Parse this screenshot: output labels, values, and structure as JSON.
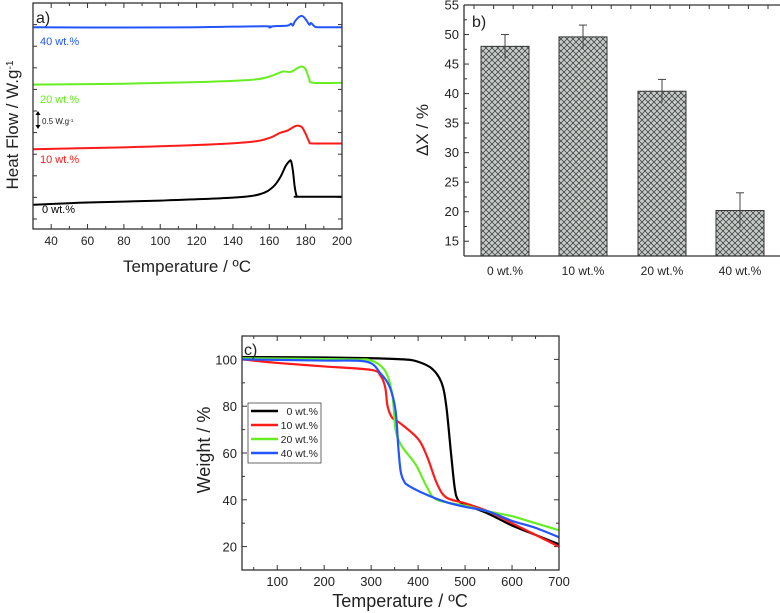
{
  "chart_data": [
    {
      "panel": "a)",
      "type": "line",
      "xlabel": "Temperature / ºC",
      "ylabel": "Heat Flow / W.g",
      "ylabel_sup": "-1",
      "xlim": [
        30,
        200
      ],
      "ylim": [
        0,
        7
      ],
      "xticks": [
        40,
        60,
        80,
        100,
        120,
        140,
        160,
        180,
        200
      ],
      "scale_bar_label": "0.5 W.g",
      "scale_bar_sup": "-1",
      "scale_bar_value": 0.5,
      "series": [
        {
          "name": "0 wt.%",
          "color": "#000000",
          "x": [
            30,
            60,
            100,
            140,
            155,
            162,
            166,
            169,
            171,
            172,
            173,
            174,
            175,
            176,
            200
          ],
          "y": [
            0.75,
            0.82,
            0.88,
            0.97,
            1.08,
            1.3,
            1.6,
            1.95,
            2.1,
            2.1,
            1.8,
            1.3,
            1.03,
            1.0,
            1.0
          ]
        },
        {
          "name": "10 wt.%",
          "color": "#ff1a1a",
          "x": [
            30,
            80,
            120,
            150,
            160,
            166,
            170,
            174,
            176,
            178,
            180,
            182,
            184,
            200
          ],
          "y": [
            2.47,
            2.53,
            2.6,
            2.7,
            2.82,
            2.98,
            3.05,
            3.18,
            3.2,
            3.15,
            2.95,
            2.7,
            2.65,
            2.65
          ]
        },
        {
          "name": "20 wt.%",
          "color": "#66ee22",
          "x": [
            30,
            80,
            120,
            150,
            160,
            166,
            168,
            172,
            176,
            178,
            180,
            182,
            184,
            200
          ],
          "y": [
            4.47,
            4.5,
            4.55,
            4.62,
            4.72,
            4.85,
            4.88,
            4.87,
            5.0,
            5.03,
            4.95,
            4.65,
            4.53,
            4.53
          ]
        },
        {
          "name": "40 wt.%",
          "color": "#2255ff",
          "x": [
            30,
            80,
            120,
            158,
            160,
            162,
            170,
            172,
            173,
            174,
            176,
            178,
            180,
            182,
            183,
            185,
            187,
            200
          ],
          "y": [
            6.25,
            6.24,
            6.25,
            6.28,
            6.24,
            6.28,
            6.3,
            6.36,
            6.3,
            6.42,
            6.55,
            6.6,
            6.5,
            6.33,
            6.38,
            6.27,
            6.25,
            6.25
          ]
        }
      ]
    },
    {
      "panel": "b)",
      "type": "bar",
      "categories": [
        "0 wt.%",
        "10 wt.%",
        "20 wt.%",
        "40 wt.%"
      ],
      "values": [
        48.0,
        49.6,
        40.4,
        20.2
      ],
      "errors": [
        2.0,
        2.0,
        2.0,
        3.0
      ],
      "xlabel": "",
      "ylabel": "ΔX / %",
      "ylim": [
        12.5,
        55
      ],
      "yticks": [
        15,
        20,
        25,
        30,
        35,
        40,
        45,
        50,
        55
      ],
      "bar_color": "#c5ccc8"
    },
    {
      "panel": "c)",
      "type": "line",
      "xlabel": "Temperature / ºC",
      "ylabel": "Weight / %",
      "xlim": [
        25,
        700
      ],
      "ylim": [
        10,
        110
      ],
      "xticks": [
        100,
        200,
        300,
        400,
        500,
        600,
        700
      ],
      "yticks": [
        20,
        40,
        60,
        80,
        100
      ],
      "legend": "center-left",
      "series": [
        {
          "name": "0 wt.%",
          "color": "#000000",
          "x": [
            25,
            200,
            300,
            370,
            400,
            430,
            450,
            460,
            470,
            478,
            485,
            500,
            550,
            600,
            650,
            700
          ],
          "y": [
            101,
            100.8,
            100.5,
            100,
            99,
            96,
            90,
            80,
            60,
            45,
            40,
            38,
            34,
            29,
            25,
            21
          ]
        },
        {
          "name": "10 wt.%",
          "color": "#ff1a1a",
          "x": [
            25,
            100,
            200,
            300,
            320,
            330,
            335,
            345,
            360,
            400,
            420,
            440,
            460,
            500,
            550,
            600,
            650,
            700
          ],
          "y": [
            100,
            98.5,
            97,
            95.5,
            93,
            88,
            80,
            75,
            73,
            66,
            58,
            47,
            41,
            38.5,
            35,
            30,
            25,
            20
          ]
        },
        {
          "name": "20 wt.%",
          "color": "#66ee22",
          "x": [
            25,
            250,
            300,
            330,
            345,
            352,
            365,
            395,
            420,
            440,
            500,
            550,
            600,
            650,
            700
          ],
          "y": [
            100.5,
            100,
            99.5,
            95,
            85,
            70,
            63,
            55,
            45,
            40,
            37.5,
            35,
            33,
            30,
            27
          ]
        },
        {
          "name": "40 wt.%",
          "color": "#2255ff",
          "x": [
            25,
            200,
            290,
            320,
            340,
            352,
            358,
            363,
            370,
            380,
            420,
            460,
            500,
            550,
            600,
            650,
            700
          ],
          "y": [
            100,
            99.5,
            99,
            94,
            88,
            78,
            62,
            52,
            48,
            46,
            42,
            39,
            37,
            35,
            31,
            28,
            24
          ]
        }
      ]
    }
  ]
}
